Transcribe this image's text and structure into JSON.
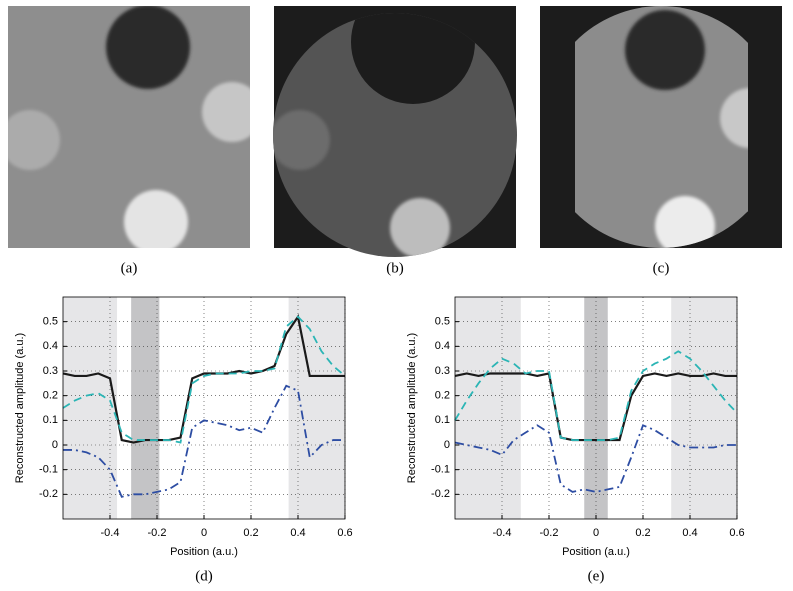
{
  "panels": [
    {
      "caption": "(a)"
    },
    {
      "caption": "(b)"
    },
    {
      "caption": "(c)"
    }
  ],
  "chart_data": [
    {
      "type": "line",
      "caption": "(d)",
      "xlabel": "Position (a.u.)",
      "ylabel": "Reconstructed amplitude (a.u.)",
      "xlim": [
        -0.6,
        0.6
      ],
      "ylim": [
        -0.3,
        0.6
      ],
      "xticks": [
        -0.4,
        -0.2,
        0,
        0.2,
        0.4,
        0.6
      ],
      "yticks": [
        -0.2,
        -0.1,
        0,
        0.1,
        0.2,
        0.3,
        0.4,
        0.5
      ],
      "grid": true,
      "shaded_regions": [
        {
          "x": [
            -0.6,
            -0.37
          ],
          "color": "#e6e6e8"
        },
        {
          "x": [
            -0.31,
            -0.19
          ],
          "color": "#c4c4c6"
        },
        {
          "x": [
            0.36,
            0.6
          ],
          "color": "#e6e6e8"
        }
      ],
      "x": [
        -0.6,
        -0.55,
        -0.5,
        -0.45,
        -0.4,
        -0.35,
        -0.3,
        -0.25,
        -0.2,
        -0.15,
        -0.1,
        -0.05,
        0,
        0.05,
        0.1,
        0.15,
        0.2,
        0.25,
        0.3,
        0.35,
        0.4,
        0.45,
        0.5,
        0.55,
        0.6
      ],
      "series": [
        {
          "color": "#1a1a1a",
          "dash": "solid",
          "values": [
            0.29,
            0.28,
            0.28,
            0.29,
            0.27,
            0.02,
            0.01,
            0.02,
            0.02,
            0.02,
            0.03,
            0.27,
            0.29,
            0.29,
            0.29,
            0.3,
            0.29,
            0.3,
            0.32,
            0.45,
            0.52,
            0.28,
            0.28,
            0.28,
            0.28
          ]
        },
        {
          "color": "#2bb5b5",
          "dash": "dashed",
          "values": [
            0.15,
            0.18,
            0.2,
            0.21,
            0.18,
            0.05,
            0.02,
            0.02,
            0.02,
            0.02,
            0.01,
            0.25,
            0.28,
            0.29,
            0.29,
            0.29,
            0.3,
            0.3,
            0.31,
            0.48,
            0.52,
            0.47,
            0.38,
            0.32,
            0.28
          ]
        },
        {
          "color": "#2d4da3",
          "dash": "dashdot",
          "values": [
            -0.02,
            -0.02,
            -0.03,
            -0.05,
            -0.1,
            -0.21,
            -0.2,
            -0.2,
            -0.19,
            -0.18,
            -0.15,
            0.07,
            0.1,
            0.09,
            0.08,
            0.06,
            0.07,
            0.05,
            0.15,
            0.24,
            0.22,
            -0.05,
            0.0,
            0.02,
            0.02
          ]
        }
      ]
    },
    {
      "type": "line",
      "caption": "(e)",
      "xlabel": "Position (a.u.)",
      "ylabel": "Reconstructed amplitude (a.u.)",
      "xlim": [
        -0.6,
        0.6
      ],
      "ylim": [
        -0.3,
        0.6
      ],
      "xticks": [
        -0.4,
        -0.2,
        0,
        0.2,
        0.4,
        0.6
      ],
      "yticks": [
        -0.2,
        -0.1,
        0,
        0.1,
        0.2,
        0.3,
        0.4,
        0.5
      ],
      "grid": true,
      "shaded_regions": [
        {
          "x": [
            -0.6,
            -0.32
          ],
          "color": "#e6e6e8"
        },
        {
          "x": [
            -0.05,
            0.05
          ],
          "color": "#c4c4c6"
        },
        {
          "x": [
            0.32,
            0.6
          ],
          "color": "#e6e6e8"
        }
      ],
      "x": [
        -0.6,
        -0.55,
        -0.5,
        -0.45,
        -0.4,
        -0.35,
        -0.3,
        -0.25,
        -0.2,
        -0.15,
        -0.1,
        -0.05,
        0,
        0.05,
        0.1,
        0.15,
        0.2,
        0.25,
        0.3,
        0.35,
        0.4,
        0.45,
        0.5,
        0.55,
        0.6
      ],
      "series": [
        {
          "color": "#1a1a1a",
          "dash": "solid",
          "values": [
            0.28,
            0.29,
            0.28,
            0.29,
            0.29,
            0.29,
            0.29,
            0.28,
            0.29,
            0.03,
            0.02,
            0.02,
            0.02,
            0.02,
            0.02,
            0.2,
            0.28,
            0.29,
            0.28,
            0.29,
            0.28,
            0.28,
            0.29,
            0.28,
            0.28
          ]
        },
        {
          "color": "#2bb5b5",
          "dash": "dashed",
          "values": [
            0.1,
            0.18,
            0.25,
            0.31,
            0.35,
            0.33,
            0.29,
            0.3,
            0.3,
            0.03,
            0.02,
            0.02,
            0.02,
            0.02,
            0.03,
            0.22,
            0.3,
            0.33,
            0.35,
            0.38,
            0.35,
            0.3,
            0.24,
            0.18,
            0.13
          ]
        },
        {
          "color": "#2d4da3",
          "dash": "dashdot",
          "values": [
            0.01,
            0.0,
            -0.01,
            -0.02,
            -0.04,
            0.02,
            0.05,
            0.08,
            0.05,
            -0.16,
            -0.19,
            -0.18,
            -0.19,
            -0.18,
            -0.17,
            -0.05,
            0.08,
            0.06,
            0.03,
            0.0,
            -0.01,
            -0.01,
            -0.01,
            0.0,
            0.0
          ]
        }
      ]
    }
  ]
}
